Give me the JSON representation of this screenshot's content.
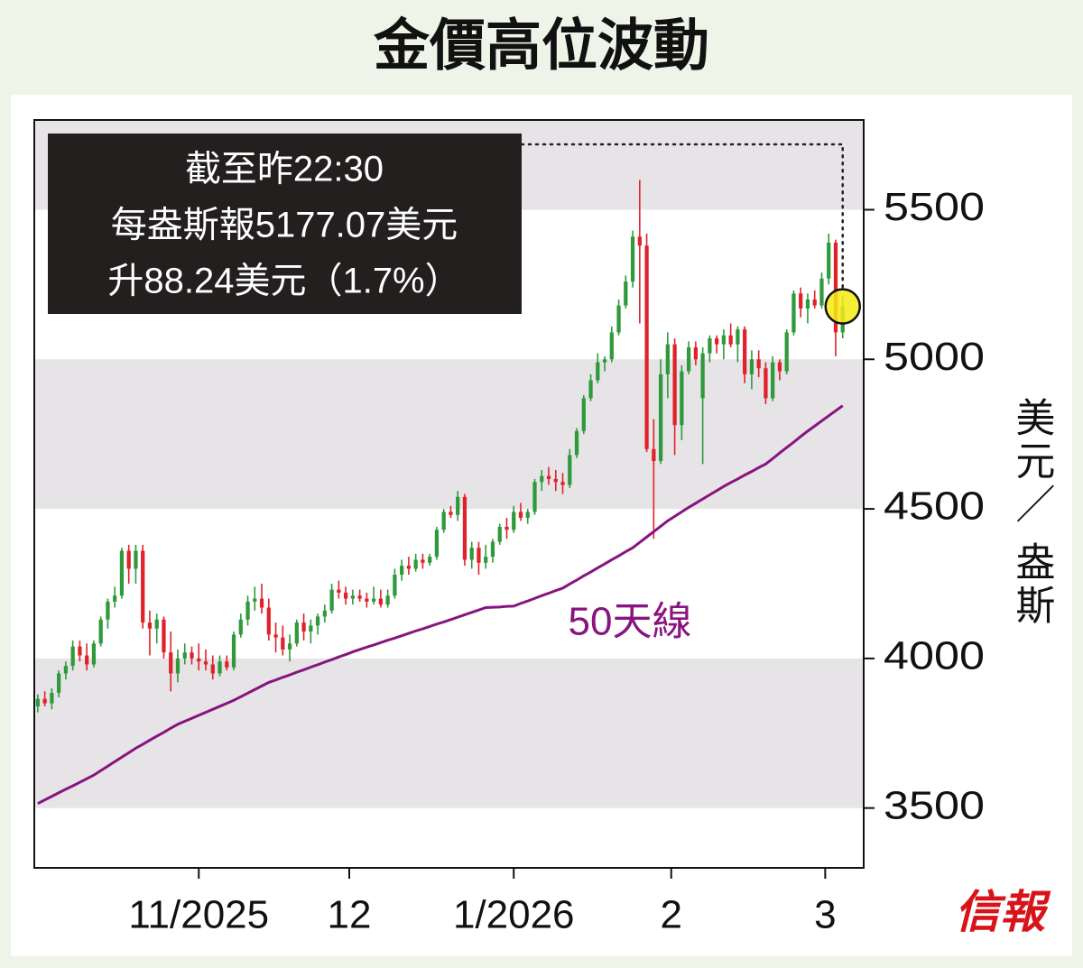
{
  "chart_data": {
    "type": "candlestick",
    "title": "金價高位波動",
    "annotation": [
      "截至昨22:30",
      "每盎斯報5177.07美元",
      "升88.24美元（1.7%）"
    ],
    "ylabel": [
      "美元／",
      "盎斯"
    ],
    "source": "信報",
    "ylim": [
      3300,
      5800
    ],
    "yticks": [
      3500,
      4000,
      4500,
      5000,
      5500
    ],
    "xlim": [
      -0.5,
      118
    ],
    "xticks": [
      {
        "value": 23,
        "label": "11/2025"
      },
      {
        "value": 44.5,
        "label": "12"
      },
      {
        "value": 68,
        "label": "1/2026"
      },
      {
        "value": 90.5,
        "label": "2"
      },
      {
        "value": 112.5,
        "label": "3"
      }
    ],
    "bands": true,
    "up_color": "#2f9a3c",
    "down_color": "#e0222b",
    "open": [
      3840,
      3865,
      3850,
      3885,
      3950,
      3975,
      4040,
      4010,
      3980,
      4050,
      4130,
      4190,
      4210,
      4360,
      4300,
      4360,
      4120,
      4100,
      4130,
      4020,
      3950,
      4000,
      4020,
      4000,
      3990,
      3980,
      3950,
      3990,
      3970,
      4080,
      4130,
      4190,
      4200,
      4170,
      4080,
      4070,
      4030,
      4050,
      4120,
      4090,
      4110,
      4140,
      4160,
      4230,
      4220,
      4200,
      4210,
      4200,
      4190,
      4200,
      4180,
      4210,
      4280,
      4310,
      4300,
      4330,
      4320,
      4340,
      4430,
      4490,
      4480,
      4540,
      4330,
      4370,
      4320,
      4340,
      4390,
      4440,
      4430,
      4490,
      4470,
      4490,
      4590,
      4610,
      4600,
      4590,
      4580,
      4680,
      4760,
      4870,
      4930,
      4990,
      5000,
      5090,
      5180,
      5260,
      5410,
      5380,
      4700,
      4660,
      4950,
      5050,
      4780,
      4960,
      5040,
      4870,
      5020,
      5070,
      5050,
      5080,
      5050,
      5100,
      4950,
      5000,
      4970,
      4870,
      4990,
      4960,
      5090,
      5220,
      5170,
      5200,
      5180,
      5270,
      5390,
      5090
    ],
    "high": [
      3880,
      3890,
      3900,
      3960,
      3990,
      4060,
      4060,
      4050,
      4060,
      4140,
      4200,
      4240,
      4370,
      4380,
      4380,
      4380,
      4160,
      4150,
      4140,
      4090,
      4030,
      4050,
      4040,
      4050,
      4030,
      4010,
      4010,
      4010,
      4090,
      4150,
      4210,
      4240,
      4250,
      4200,
      4120,
      4110,
      4080,
      4130,
      4150,
      4130,
      4150,
      4180,
      4250,
      4260,
      4240,
      4230,
      4230,
      4220,
      4240,
      4230,
      4230,
      4300,
      4330,
      4340,
      4350,
      4350,
      4350,
      4440,
      4500,
      4510,
      4560,
      4550,
      4390,
      4390,
      4380,
      4400,
      4450,
      4470,
      4510,
      4520,
      4500,
      4600,
      4630,
      4640,
      4630,
      4620,
      4700,
      4770,
      4880,
      4950,
      5020,
      5010,
      5110,
      5200,
      5280,
      5430,
      5600,
      5420,
      4800,
      5000,
      5090,
      5070,
      4980,
      5060,
      5060,
      5040,
      5080,
      5080,
      5100,
      5120,
      5110,
      5110,
      5030,
      5030,
      4990,
      5010,
      5000,
      5100,
      5230,
      5240,
      5220,
      5230,
      5290,
      5420,
      5400,
      5210
    ],
    "low": [
      3820,
      3840,
      3830,
      3870,
      3930,
      3960,
      3990,
      3960,
      3970,
      4040,
      4100,
      4170,
      4200,
      4250,
      4250,
      4100,
      4010,
      4050,
      4000,
      3890,
      3920,
      3980,
      3980,
      3960,
      3960,
      3930,
      3940,
      3960,
      3960,
      4070,
      4110,
      4160,
      4150,
      4060,
      4020,
      4010,
      3990,
      4040,
      4060,
      4050,
      4080,
      4120,
      4150,
      4200,
      4180,
      4180,
      4190,
      4170,
      4180,
      4170,
      4170,
      4200,
      4260,
      4280,
      4290,
      4300,
      4310,
      4330,
      4420,
      4470,
      4460,
      4310,
      4300,
      4280,
      4300,
      4320,
      4380,
      4400,
      4420,
      4460,
      4450,
      4480,
      4560,
      4580,
      4560,
      4550,
      4570,
      4670,
      4750,
      4860,
      4920,
      4960,
      4990,
      5080,
      5170,
      5240,
      5120,
      4690,
      4400,
      4650,
      4870,
      4680,
      4730,
      4950,
      4980,
      4650,
      4990,
      5020,
      5000,
      5040,
      4990,
      4920,
      4900,
      4940,
      4850,
      4860,
      4930,
      4950,
      5080,
      5140,
      5120,
      5170,
      5170,
      5250,
      5010,
      5070
    ],
    "close": [
      3865,
      3850,
      3885,
      3950,
      3975,
      4040,
      4010,
      3980,
      4050,
      4130,
      4190,
      4210,
      4360,
      4300,
      4360,
      4120,
      4100,
      4130,
      4020,
      3950,
      4000,
      4020,
      4000,
      3990,
      3980,
      3950,
      3990,
      3970,
      4080,
      4130,
      4190,
      4200,
      4170,
      4080,
      4070,
      4030,
      4050,
      4120,
      4090,
      4110,
      4140,
      4160,
      4230,
      4220,
      4200,
      4210,
      4200,
      4190,
      4200,
      4180,
      4210,
      4280,
      4310,
      4300,
      4330,
      4320,
      4340,
      4430,
      4490,
      4480,
      4540,
      4330,
      4370,
      4320,
      4340,
      4390,
      4440,
      4430,
      4490,
      4470,
      4490,
      4590,
      4610,
      4600,
      4590,
      4580,
      4680,
      4760,
      4870,
      4930,
      4990,
      5000,
      5090,
      5180,
      5260,
      5410,
      5380,
      4700,
      4660,
      4950,
      5050,
      4780,
      4960,
      5040,
      5000,
      5020,
      5070,
      5050,
      5080,
      5050,
      5100,
      4950,
      5000,
      4970,
      4870,
      4990,
      4960,
      5090,
      5220,
      5170,
      5200,
      5180,
      5270,
      5390,
      5090,
      5177.07
    ],
    "series": [
      {
        "name": "50天線",
        "color": "#87147f",
        "values": [
          3515,
          3527,
          3539,
          3551,
          3563,
          3574,
          3586,
          3598,
          3610,
          3625,
          3640,
          3655,
          3670,
          3685,
          3700,
          3713,
          3727,
          3740,
          3753,
          3767,
          3780,
          3790,
          3800,
          3810,
          3820,
          3830,
          3840,
          3850,
          3860,
          3872,
          3884,
          3896,
          3908,
          3920,
          3928,
          3937,
          3945,
          3954,
          3962,
          3971,
          3979,
          3988,
          3996,
          4005,
          4013,
          4022,
          4030,
          4038,
          4045,
          4053,
          4061,
          4068,
          4076,
          4084,
          4092,
          4099,
          4107,
          4115,
          4122,
          4130,
          4138,
          4146,
          4154,
          4162,
          4170,
          4171,
          4172,
          4174,
          4175,
          4184,
          4192,
          4201,
          4210,
          4218,
          4227,
          4235,
          4249,
          4262,
          4276,
          4289,
          4303,
          4316,
          4330,
          4343,
          4357,
          4370,
          4388,
          4406,
          4424,
          4442,
          4460,
          4475,
          4490,
          4505,
          4519,
          4533,
          4547,
          4561,
          4575,
          4588,
          4600,
          4613,
          4625,
          4638,
          4650,
          4668,
          4687,
          4705,
          4723,
          4742,
          4760,
          4777,
          4794,
          4811,
          4828,
          4845
        ]
      }
    ]
  }
}
